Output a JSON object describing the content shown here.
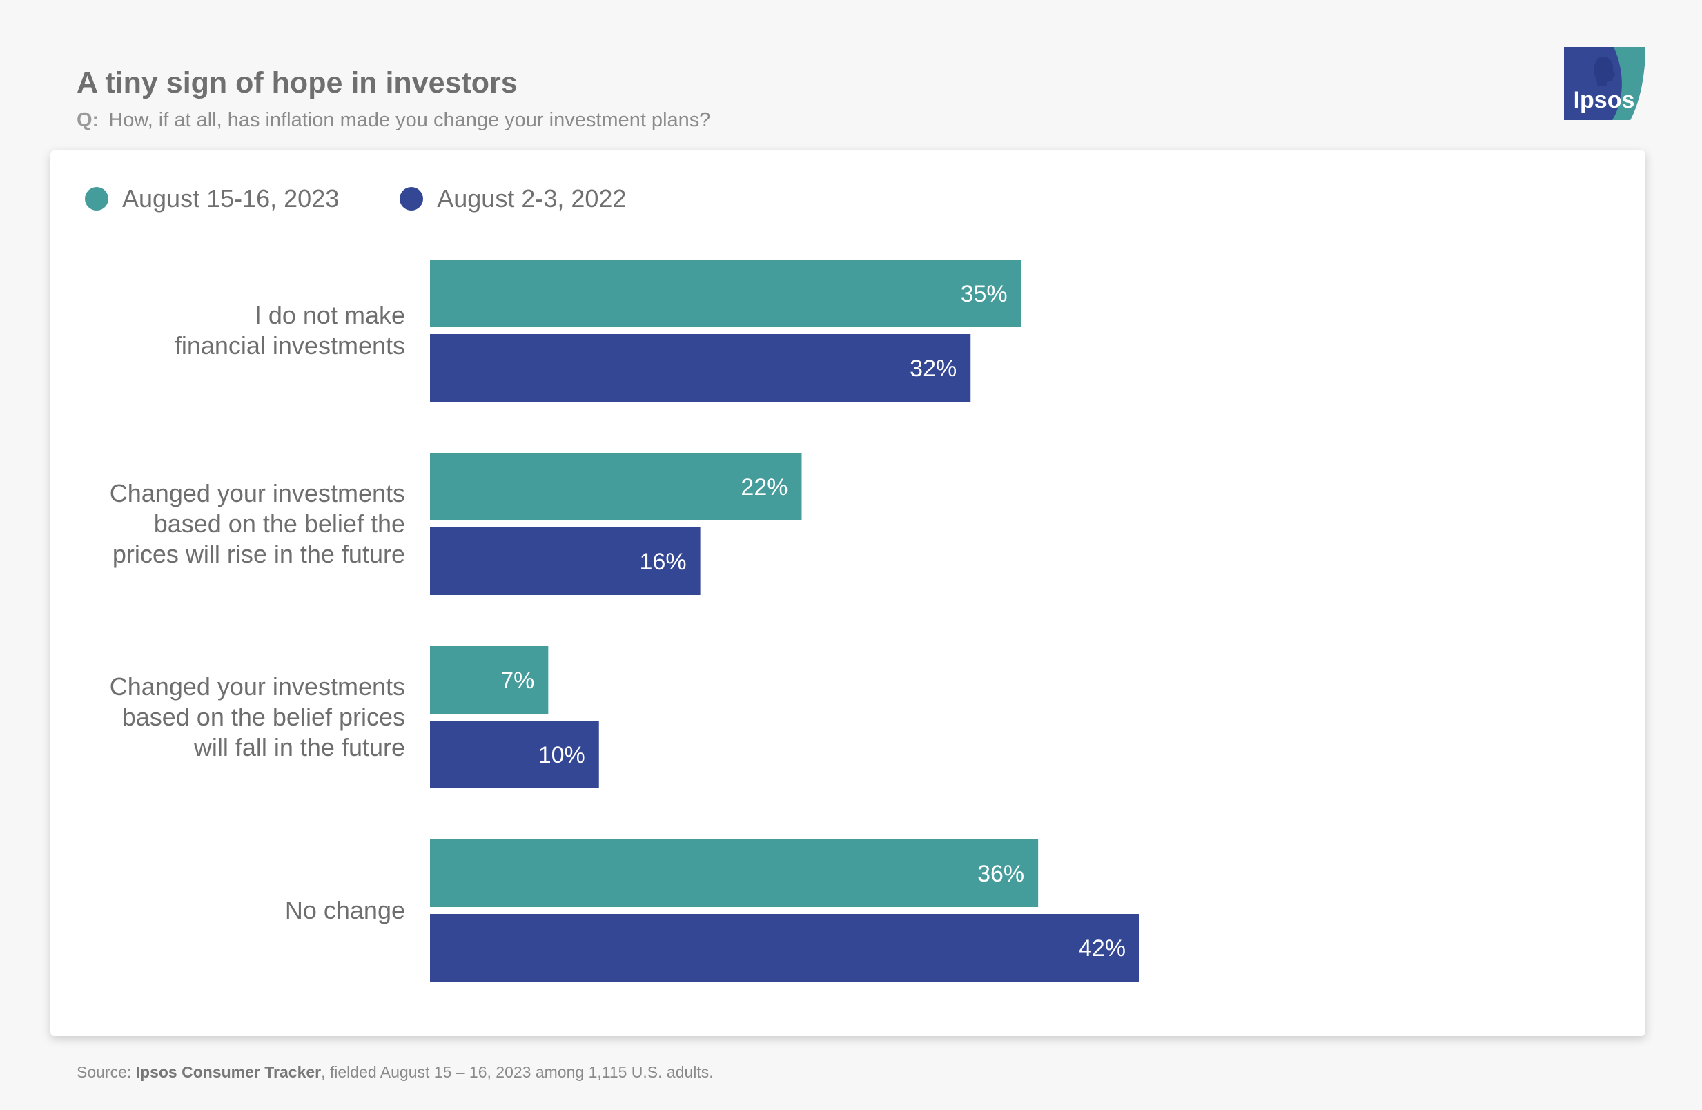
{
  "title": "A tiny sign of hope in investors",
  "question_prefix": "Q:",
  "question": "How, if at all, has inflation made you change your investment plans?",
  "logo_text": "Ipsos",
  "source_prefix": "Source:",
  "source_name": "Ipsos Consumer Tracker",
  "source_rest": ", fielded August 15 – 16, 2023 among 1,115 U.S. adults.",
  "colors": {
    "series_2023": "#449c9b",
    "series_2022": "#334795",
    "logo_bg": "#334795",
    "logo_accent": "#449c9b"
  },
  "chart_data": {
    "type": "bar",
    "orientation": "horizontal",
    "title": "A tiny sign of hope in investors",
    "legend_position": "top-left",
    "categories": [
      [
        "I do not make",
        "financial investments"
      ],
      [
        "Changed your investments",
        "based on the belief the",
        "prices will rise in the future"
      ],
      [
        "Changed your investments",
        "based on the belief prices",
        "will fall in the future"
      ],
      [
        "No change"
      ]
    ],
    "series": [
      {
        "name": "August 15-16, 2023",
        "color": "#449c9b",
        "values": [
          35,
          22,
          7,
          36
        ],
        "labels": [
          "35%",
          "22%",
          "7%",
          "36%"
        ]
      },
      {
        "name": "August 2-3, 2022",
        "color": "#334795",
        "values": [
          32,
          16,
          10,
          42
        ],
        "labels": [
          "32%",
          "16%",
          "10%",
          "42%"
        ]
      }
    ],
    "xlim": [
      0,
      42
    ],
    "grid": false
  }
}
